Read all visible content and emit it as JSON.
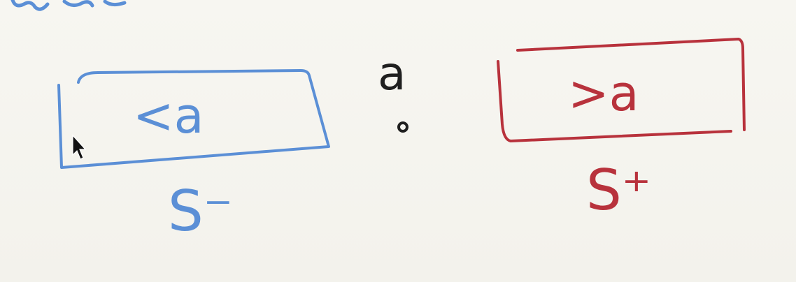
{
  "colors": {
    "background": "#f6f5ef",
    "blue_ink": "#5b8fd6",
    "red_ink": "#b8323c",
    "black_ink": "#1f1f1f"
  },
  "diagram": {
    "top_fragment": "ω",
    "left_box": {
      "text": "<a",
      "label": "S⁻"
    },
    "pivot": {
      "label": "a"
    },
    "right_box": {
      "text": ">a",
      "label": "S⁺"
    }
  },
  "cursor": {
    "icon": "mouse-pointer-icon"
  }
}
